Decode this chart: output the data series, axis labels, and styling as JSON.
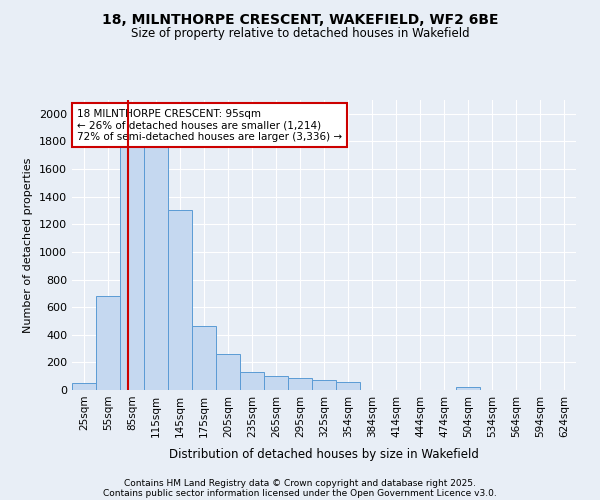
{
  "title_line1": "18, MILNTHORPE CRESCENT, WAKEFIELD, WF2 6BE",
  "title_line2": "Size of property relative to detached houses in Wakefield",
  "xlabel": "Distribution of detached houses by size in Wakefield",
  "ylabel": "Number of detached properties",
  "bins": [
    "25sqm",
    "55sqm",
    "85sqm",
    "115sqm",
    "145sqm",
    "175sqm",
    "205sqm",
    "235sqm",
    "265sqm",
    "295sqm",
    "325sqm",
    "354sqm",
    "384sqm",
    "414sqm",
    "444sqm",
    "474sqm",
    "504sqm",
    "534sqm",
    "564sqm",
    "594sqm",
    "624sqm"
  ],
  "values": [
    50,
    680,
    1850,
    1850,
    1300,
    460,
    260,
    130,
    105,
    90,
    70,
    60,
    0,
    0,
    0,
    0,
    20,
    0,
    0,
    0,
    0
  ],
  "bar_color": "#c5d8f0",
  "bar_edge_color": "#5b9bd5",
  "vline_color": "#cc0000",
  "vline_x_index": 1.83,
  "annotation_text": "18 MILNTHORPE CRESCENT: 95sqm\n← 26% of detached houses are smaller (1,214)\n72% of semi-detached houses are larger (3,336) →",
  "annotation_box_color": "#ffffff",
  "annotation_box_edge": "#cc0000",
  "ylim": [
    0,
    2100
  ],
  "yticks": [
    0,
    200,
    400,
    600,
    800,
    1000,
    1200,
    1400,
    1600,
    1800,
    2000
  ],
  "background_color": "#e8eef6",
  "grid_color": "#ffffff",
  "footnote_line1": "Contains HM Land Registry data © Crown copyright and database right 2025.",
  "footnote_line2": "Contains public sector information licensed under the Open Government Licence v3.0."
}
